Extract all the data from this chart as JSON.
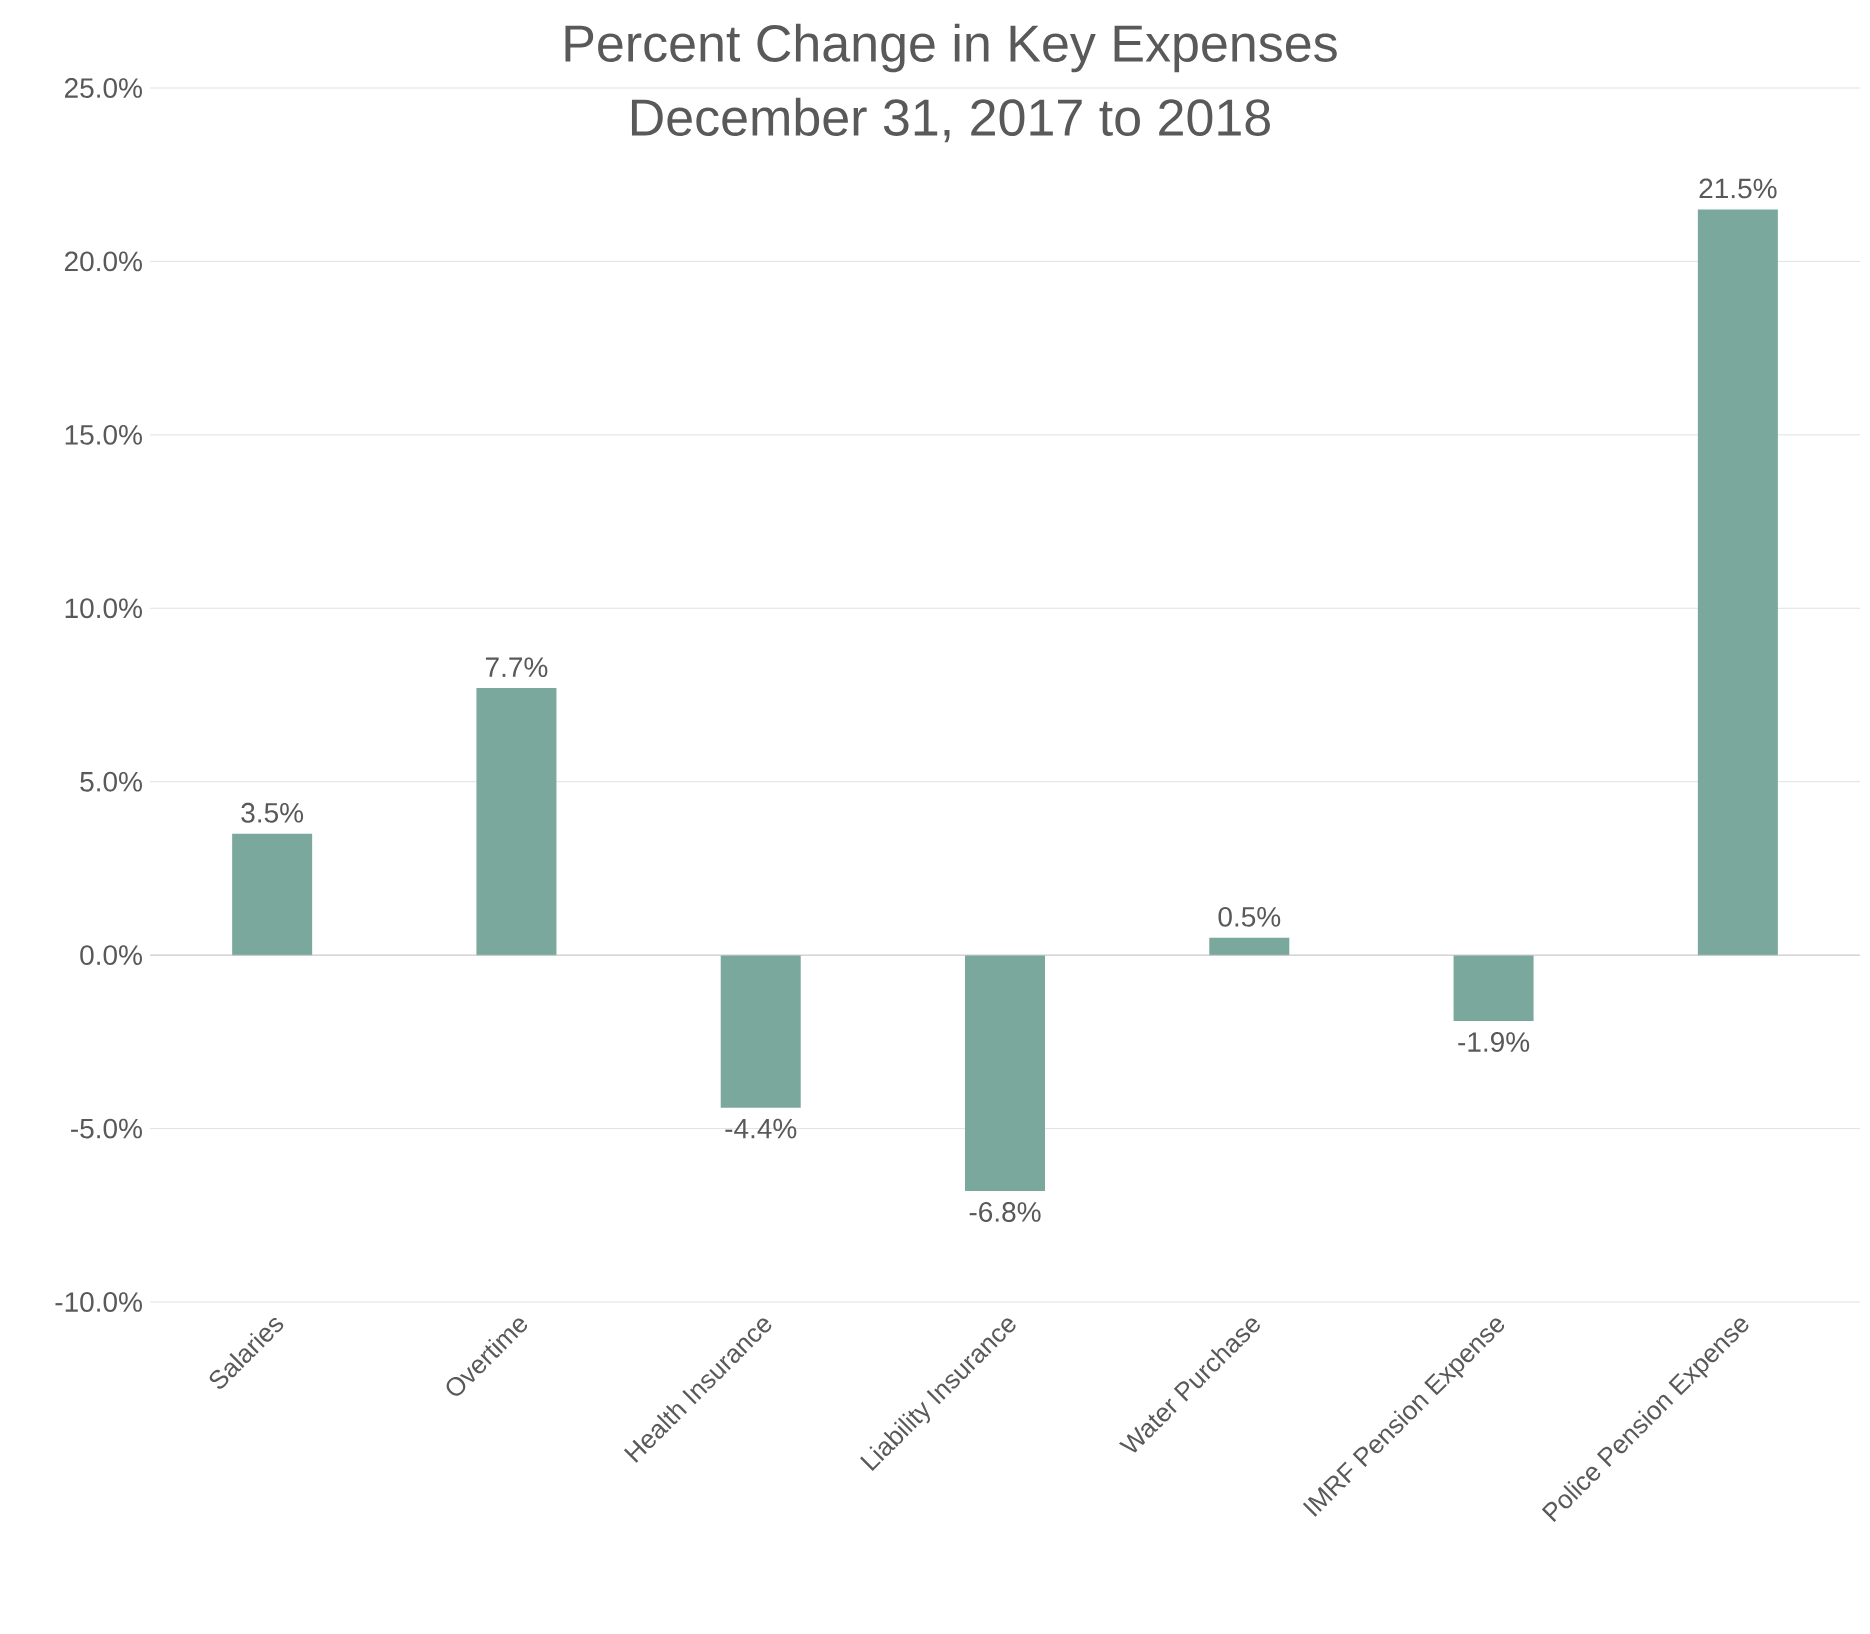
{
  "chart_data": {
    "type": "bar",
    "title": "Percent Change in Key Expenses",
    "subtitle": "December 31, 2017 to 2018",
    "categories": [
      "Salaries",
      "Overtime",
      "Health Insurance",
      "Liability Insurance",
      "Water Purchase",
      "IMRF Pension Expense",
      "Police Pension Expense"
    ],
    "values": [
      3.5,
      7.7,
      -4.4,
      -6.8,
      0.5,
      -1.9,
      21.5
    ],
    "value_labels": [
      "3.5%",
      "7.7%",
      "-4.4%",
      "-6.8%",
      "0.5%",
      "-1.9%",
      "21.5%"
    ],
    "color": "#7aa89c",
    "ylim": [
      -10,
      25
    ],
    "yticks": [
      {
        "value": -10,
        "label": "-10.0%"
      },
      {
        "value": -5,
        "label": "-5.0%"
      },
      {
        "value": 0,
        "label": "0.0%"
      },
      {
        "value": 5,
        "label": "5.0%"
      },
      {
        "value": 10,
        "label": "10.0%"
      },
      {
        "value": 15,
        "label": "15.0%"
      },
      {
        "value": 20,
        "label": "20.0%"
      },
      {
        "value": 25,
        "label": "25.0%"
      }
    ],
    "grid": "y"
  }
}
